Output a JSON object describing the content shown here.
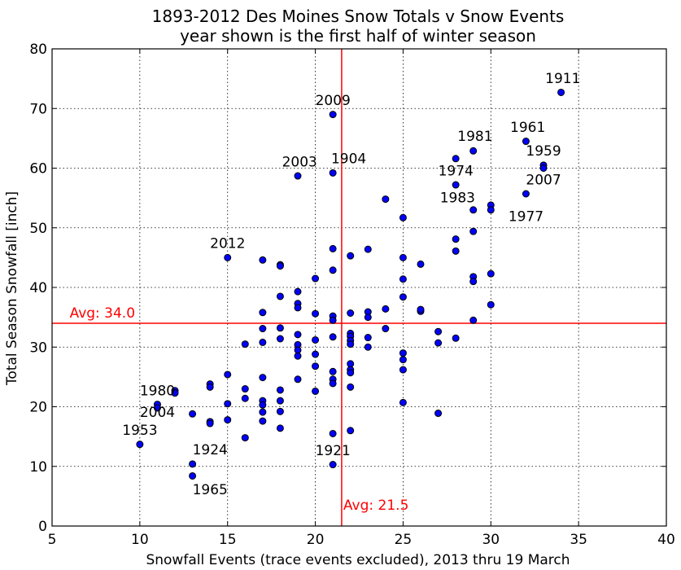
{
  "chart_data": {
    "type": "scatter",
    "title_lines": [
      "1893-2012 Des Moines Snow Totals v Snow Events",
      "year shown is the first half of winter season"
    ],
    "xlabel": "Snowfall Events (trace events excluded), 2013 thru 19 March",
    "ylabel": "Total Season Snowfall [inch]",
    "xlim": [
      5,
      40
    ],
    "ylim": [
      0,
      80
    ],
    "xticks": [
      5,
      10,
      15,
      20,
      25,
      30,
      35,
      40
    ],
    "yticks": [
      0,
      10,
      20,
      30,
      40,
      50,
      60,
      70,
      80
    ],
    "grid": true,
    "grid_style": "dotted",
    "marker_color": "#0000ff",
    "marker_edge": "#000000",
    "line_color": "#ff0000",
    "avg_lines": {
      "x": 21.5,
      "y": 34.0,
      "x_label": "Avg: 21.5",
      "y_label": "Avg: 34.0"
    },
    "points": [
      {
        "x": 10,
        "y": 13.7
      },
      {
        "x": 11,
        "y": 20.4
      },
      {
        "x": 11,
        "y": 19.8
      },
      {
        "x": 12,
        "y": 22.7
      },
      {
        "x": 12,
        "y": 22.3
      },
      {
        "x": 13,
        "y": 18.8
      },
      {
        "x": 13,
        "y": 10.4
      },
      {
        "x": 13,
        "y": 8.4
      },
      {
        "x": 14,
        "y": 23.8
      },
      {
        "x": 14,
        "y": 23.3
      },
      {
        "x": 14,
        "y": 17.5
      },
      {
        "x": 14,
        "y": 17.2
      },
      {
        "x": 15,
        "y": 45.0
      },
      {
        "x": 15,
        "y": 25.4
      },
      {
        "x": 15,
        "y": 20.5
      },
      {
        "x": 15,
        "y": 17.8
      },
      {
        "x": 16,
        "y": 30.5
      },
      {
        "x": 16,
        "y": 23.0
      },
      {
        "x": 16,
        "y": 21.4
      },
      {
        "x": 16,
        "y": 14.8
      },
      {
        "x": 17,
        "y": 44.6
      },
      {
        "x": 17,
        "y": 35.8
      },
      {
        "x": 17,
        "y": 33.1
      },
      {
        "x": 17,
        "y": 30.8
      },
      {
        "x": 17,
        "y": 24.9
      },
      {
        "x": 17,
        "y": 21.0
      },
      {
        "x": 17,
        "y": 20.3
      },
      {
        "x": 17,
        "y": 19.1
      },
      {
        "x": 17,
        "y": 17.6
      },
      {
        "x": 18,
        "y": 43.8
      },
      {
        "x": 18,
        "y": 43.6
      },
      {
        "x": 18,
        "y": 38.5
      },
      {
        "x": 18,
        "y": 33.2
      },
      {
        "x": 18,
        "y": 31.4
      },
      {
        "x": 18,
        "y": 22.8
      },
      {
        "x": 18,
        "y": 21.0
      },
      {
        "x": 18,
        "y": 19.2
      },
      {
        "x": 18,
        "y": 16.4
      },
      {
        "x": 19,
        "y": 58.7
      },
      {
        "x": 19,
        "y": 39.3
      },
      {
        "x": 19,
        "y": 37.3
      },
      {
        "x": 19,
        "y": 36.6
      },
      {
        "x": 19,
        "y": 32.1
      },
      {
        "x": 19,
        "y": 30.4
      },
      {
        "x": 19,
        "y": 29.5
      },
      {
        "x": 19,
        "y": 28.5
      },
      {
        "x": 19,
        "y": 24.6
      },
      {
        "x": 20,
        "y": 41.5
      },
      {
        "x": 20,
        "y": 35.6
      },
      {
        "x": 20,
        "y": 31.2
      },
      {
        "x": 20,
        "y": 28.8
      },
      {
        "x": 20,
        "y": 26.8
      },
      {
        "x": 20,
        "y": 22.6
      },
      {
        "x": 21,
        "y": 69.0
      },
      {
        "x": 21,
        "y": 59.2
      },
      {
        "x": 21,
        "y": 46.5
      },
      {
        "x": 21,
        "y": 42.9
      },
      {
        "x": 21,
        "y": 35.2
      },
      {
        "x": 21,
        "y": 34.5
      },
      {
        "x": 21,
        "y": 31.7
      },
      {
        "x": 21,
        "y": 25.9
      },
      {
        "x": 21,
        "y": 24.6
      },
      {
        "x": 21,
        "y": 23.9
      },
      {
        "x": 21,
        "y": 15.5
      },
      {
        "x": 21,
        "y": 10.3
      },
      {
        "x": 22,
        "y": 45.3
      },
      {
        "x": 22,
        "y": 35.7
      },
      {
        "x": 22,
        "y": 32.3
      },
      {
        "x": 22,
        "y": 31.8
      },
      {
        "x": 22,
        "y": 31.1
      },
      {
        "x": 22,
        "y": 30.5
      },
      {
        "x": 22,
        "y": 27.2
      },
      {
        "x": 22,
        "y": 26.2
      },
      {
        "x": 22,
        "y": 25.7
      },
      {
        "x": 22,
        "y": 23.3
      },
      {
        "x": 22,
        "y": 16.0
      },
      {
        "x": 23,
        "y": 46.4
      },
      {
        "x": 23,
        "y": 35.9
      },
      {
        "x": 23,
        "y": 35.0
      },
      {
        "x": 23,
        "y": 31.6
      },
      {
        "x": 23,
        "y": 30.0
      },
      {
        "x": 24,
        "y": 54.8
      },
      {
        "x": 24,
        "y": 36.4
      },
      {
        "x": 24,
        "y": 33.1
      },
      {
        "x": 25,
        "y": 51.7
      },
      {
        "x": 25,
        "y": 45.0
      },
      {
        "x": 25,
        "y": 41.4
      },
      {
        "x": 25,
        "y": 38.4
      },
      {
        "x": 25,
        "y": 29.0
      },
      {
        "x": 25,
        "y": 27.9
      },
      {
        "x": 25,
        "y": 26.2
      },
      {
        "x": 25,
        "y": 20.7
      },
      {
        "x": 26,
        "y": 43.9
      },
      {
        "x": 26,
        "y": 36.0
      },
      {
        "x": 26,
        "y": 36.3
      },
      {
        "x": 27,
        "y": 32.6
      },
      {
        "x": 27,
        "y": 30.7
      },
      {
        "x": 27,
        "y": 18.9
      },
      {
        "x": 28,
        "y": 61.6
      },
      {
        "x": 28,
        "y": 57.2
      },
      {
        "x": 28,
        "y": 48.1
      },
      {
        "x": 28,
        "y": 46.1
      },
      {
        "x": 28,
        "y": 31.5
      },
      {
        "x": 29,
        "y": 62.9
      },
      {
        "x": 29,
        "y": 53.0
      },
      {
        "x": 29,
        "y": 49.4
      },
      {
        "x": 29,
        "y": 41.8
      },
      {
        "x": 29,
        "y": 41.0
      },
      {
        "x": 29,
        "y": 34.5
      },
      {
        "x": 30,
        "y": 53.8
      },
      {
        "x": 30,
        "y": 53.0
      },
      {
        "x": 30,
        "y": 42.3
      },
      {
        "x": 30,
        "y": 37.1
      },
      {
        "x": 32,
        "y": 64.5
      },
      {
        "x": 32,
        "y": 55.7
      },
      {
        "x": 33,
        "y": 60.5
      },
      {
        "x": 33,
        "y": 60.0
      },
      {
        "x": 34,
        "y": 72.7
      }
    ],
    "annotations": [
      {
        "text": "1911",
        "x": 33.1,
        "y": 74.3
      },
      {
        "text": "1961",
        "x": 31.1,
        "y": 66.1
      },
      {
        "text": "1959",
        "x": 32.0,
        "y": 62.1
      },
      {
        "text": "2007",
        "x": 32.0,
        "y": 57.3
      },
      {
        "text": "1977",
        "x": 31.0,
        "y": 51.1
      },
      {
        "text": "1981",
        "x": 28.1,
        "y": 64.6
      },
      {
        "text": "1974",
        "x": 27.0,
        "y": 58.8
      },
      {
        "text": "1983",
        "x": 27.1,
        "y": 54.3
      },
      {
        "text": "2009",
        "x": 20.0,
        "y": 70.6
      },
      {
        "text": "2003",
        "x": 18.1,
        "y": 60.3
      },
      {
        "text": "1904",
        "x": 20.9,
        "y": 60.8
      },
      {
        "text": "2012",
        "x": 14.0,
        "y": 46.6
      },
      {
        "text": "1980",
        "x": 10.0,
        "y": 21.9
      },
      {
        "text": "2004",
        "x": 10.0,
        "y": 18.3
      },
      {
        "text": "1953",
        "x": 9.0,
        "y": 15.3
      },
      {
        "text": "1924",
        "x": 13.0,
        "y": 12.0
      },
      {
        "text": "1965",
        "x": 13.0,
        "y": 5.3
      },
      {
        "text": "1921",
        "x": 20.0,
        "y": 11.9
      }
    ]
  }
}
